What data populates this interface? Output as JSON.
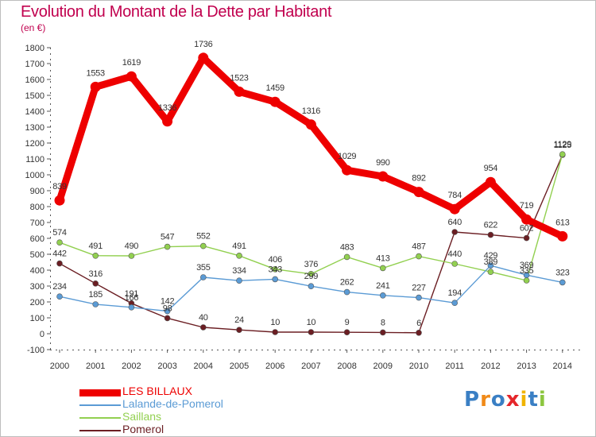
{
  "title": "Evolution du Montant de la Dette par Habitant",
  "subtitle": "(en €)",
  "logo_text": "Proxiti",
  "chart_data": {
    "type": "line",
    "x": [
      "2000",
      "2001",
      "2002",
      "2003",
      "2004",
      "2005",
      "2006",
      "2007",
      "2008",
      "2009",
      "2010",
      "2011",
      "2012",
      "2013",
      "2014"
    ],
    "ylim": [
      -100,
      1800
    ],
    "yticks": [
      -100,
      0,
      100,
      200,
      300,
      400,
      500,
      600,
      700,
      800,
      900,
      1000,
      1100,
      1200,
      1300,
      1400,
      1500,
      1600,
      1700,
      1800
    ],
    "grid": false,
    "legend_position": "bottom-left",
    "series": [
      {
        "name": "LES BILLAUX",
        "color": "#ee0000",
        "values": [
          839,
          1553,
          1619,
          1336,
          1736,
          1523,
          1459,
          1316,
          1029,
          990,
          892,
          784,
          954,
          719,
          613
        ],
        "labels": [
          "839",
          "1553",
          "1619",
          "1336",
          "1736",
          "1523",
          "1459",
          "1316",
          "1029",
          "990",
          "892",
          "784",
          "954",
          "719",
          "613"
        ]
      },
      {
        "name": "Lalande-de-Pomerol",
        "color": "#5b9bd5",
        "values": [
          234,
          185,
          166,
          142,
          355,
          334,
          343,
          299,
          262,
          241,
          227,
          194,
          429,
          369,
          323
        ],
        "labels": [
          "234",
          "185",
          "166",
          "142",
          "355",
          "334",
          "343",
          "299",
          "262",
          "241",
          "227",
          "194",
          "429",
          "369",
          "323"
        ]
      },
      {
        "name": "Saillans",
        "color": "#92d050",
        "values": [
          574,
          491,
          490,
          547,
          552,
          491,
          406,
          376,
          483,
          413,
          487,
          440,
          389,
          335,
          1129
        ],
        "labels": [
          "574",
          "491",
          "490",
          "547",
          "552",
          "491",
          "406",
          "376",
          "483",
          "413",
          "487",
          "440",
          "389",
          "335",
          "1129"
        ]
      },
      {
        "name": "Pomerol",
        "color": "#6b1e23",
        "values": [
          442,
          316,
          191,
          98,
          40,
          24,
          10,
          10,
          9,
          8,
          6,
          640,
          622,
          602,
          1125
        ],
        "labels": [
          "442",
          "316",
          "191",
          "98",
          "40",
          "24",
          "10",
          "10",
          "9",
          "8",
          "6",
          "640",
          "622",
          "602",
          "1125"
        ]
      }
    ]
  }
}
